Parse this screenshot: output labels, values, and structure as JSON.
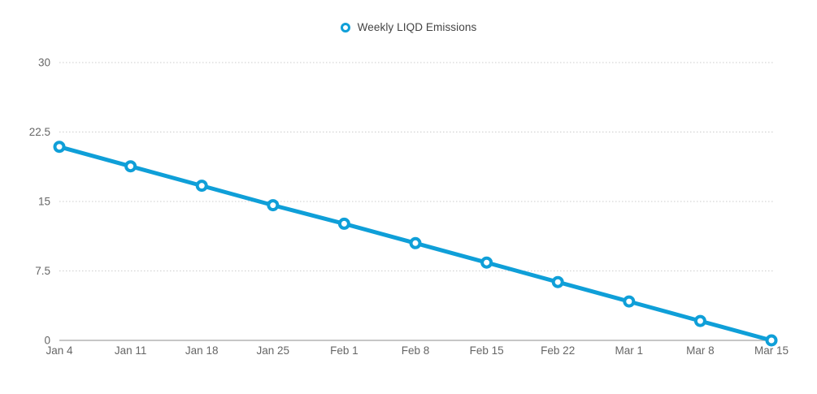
{
  "legend": {
    "label": "Weekly LIQD Emissions"
  },
  "chart_data": {
    "type": "line",
    "title": "",
    "xlabel": "",
    "ylabel": "",
    "categories": [
      "Jan 4",
      "Jan 11",
      "Jan 18",
      "Jan 25",
      "Feb 1",
      "Feb 8",
      "Feb 15",
      "Feb 22",
      "Mar 1",
      "Mar 8",
      "Mar 15"
    ],
    "series": [
      {
        "name": "Weekly LIQD Emissions",
        "values": [
          20.9,
          18.8,
          16.7,
          14.6,
          12.6,
          10.5,
          8.4,
          6.3,
          4.2,
          2.1,
          0
        ]
      }
    ],
    "ylim": [
      0,
      30
    ],
    "yticks": [
      0,
      7.5,
      15,
      22.5,
      30
    ],
    "ytick_labels": [
      "0",
      "7.5",
      "15",
      "22.5",
      "30"
    ],
    "grid": "horizontal-dotted",
    "legend_position": "top-center",
    "marker": "open-circle",
    "colors": {
      "series": "#0f9fd8",
      "grid": "#cccccc",
      "axis": "#b3b3b3",
      "tick_labels": "#666666",
      "legend_text": "#444444",
      "background": "#ffffff"
    }
  }
}
